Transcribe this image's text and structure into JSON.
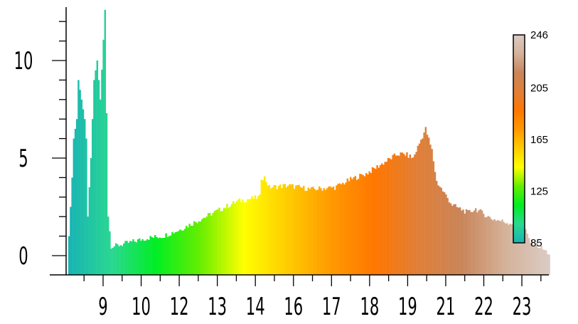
{
  "chart_data": {
    "type": "bar",
    "title": "",
    "xlabel": "",
    "ylabel": "",
    "x_tick_labels": [
      "9",
      "10",
      "12",
      "13",
      "14",
      "16",
      "17",
      "18",
      "19",
      "21",
      "22",
      "23"
    ],
    "y_tick_labels": [
      "0",
      "5",
      "10"
    ],
    "y_tick_values": [
      0,
      5,
      10
    ],
    "y_range": [
      -1,
      12.6
    ],
    "grid": false,
    "legend": "none",
    "colorbar": {
      "labels": [
        "246",
        "205",
        "165",
        "125",
        "85"
      ],
      "range": [
        85,
        246
      ],
      "placement": "right"
    },
    "profile": [
      [
        0,
        1.0
      ],
      [
        2,
        4.0
      ],
      [
        3,
        6.0
      ],
      [
        5,
        7.0
      ],
      [
        6,
        9.0
      ],
      [
        8,
        8.0
      ],
      [
        10,
        7.0
      ],
      [
        11,
        6.0
      ],
      [
        12,
        2.0
      ],
      [
        14,
        5.0
      ],
      [
        16,
        9.0
      ],
      [
        18,
        10.0
      ],
      [
        20,
        8.0
      ],
      [
        23,
        12.6
      ],
      [
        25,
        2.0
      ],
      [
        27,
        0.5
      ],
      [
        30,
        0.5
      ],
      [
        40,
        0.7
      ],
      [
        50,
        0.9
      ],
      [
        60,
        1.0
      ],
      [
        70,
        1.3
      ],
      [
        80,
        1.7
      ],
      [
        95,
        2.3
      ],
      [
        108,
        2.8
      ],
      [
        122,
        3.0
      ],
      [
        123,
        4.0
      ],
      [
        125,
        4.0
      ],
      [
        128,
        3.5
      ],
      [
        140,
        3.6
      ],
      [
        155,
        3.4
      ],
      [
        170,
        3.5
      ],
      [
        180,
        3.9
      ],
      [
        190,
        4.2
      ],
      [
        200,
        4.7
      ],
      [
        210,
        5.2
      ],
      [
        215,
        5.2
      ],
      [
        220,
        5.0
      ],
      [
        228,
        6.5
      ],
      [
        232,
        5.4
      ],
      [
        235,
        3.8
      ],
      [
        245,
        2.6
      ],
      [
        255,
        2.2
      ],
      [
        260,
        2.4
      ],
      [
        270,
        1.9
      ],
      [
        280,
        1.7
      ],
      [
        290,
        1.6
      ],
      [
        295,
        0.7
      ],
      [
        300,
        0.5
      ],
      [
        307,
        0.1
      ]
    ],
    "color_stops": [
      "#18b4b4",
      "#2ad890",
      "#00ee22",
      "#66ee00",
      "#ffff00",
      "#ffcc00",
      "#ff9900",
      "#ff7700",
      "#e07f38",
      "#c9855a",
      "#d4b29a",
      "#dbcbc4"
    ]
  }
}
